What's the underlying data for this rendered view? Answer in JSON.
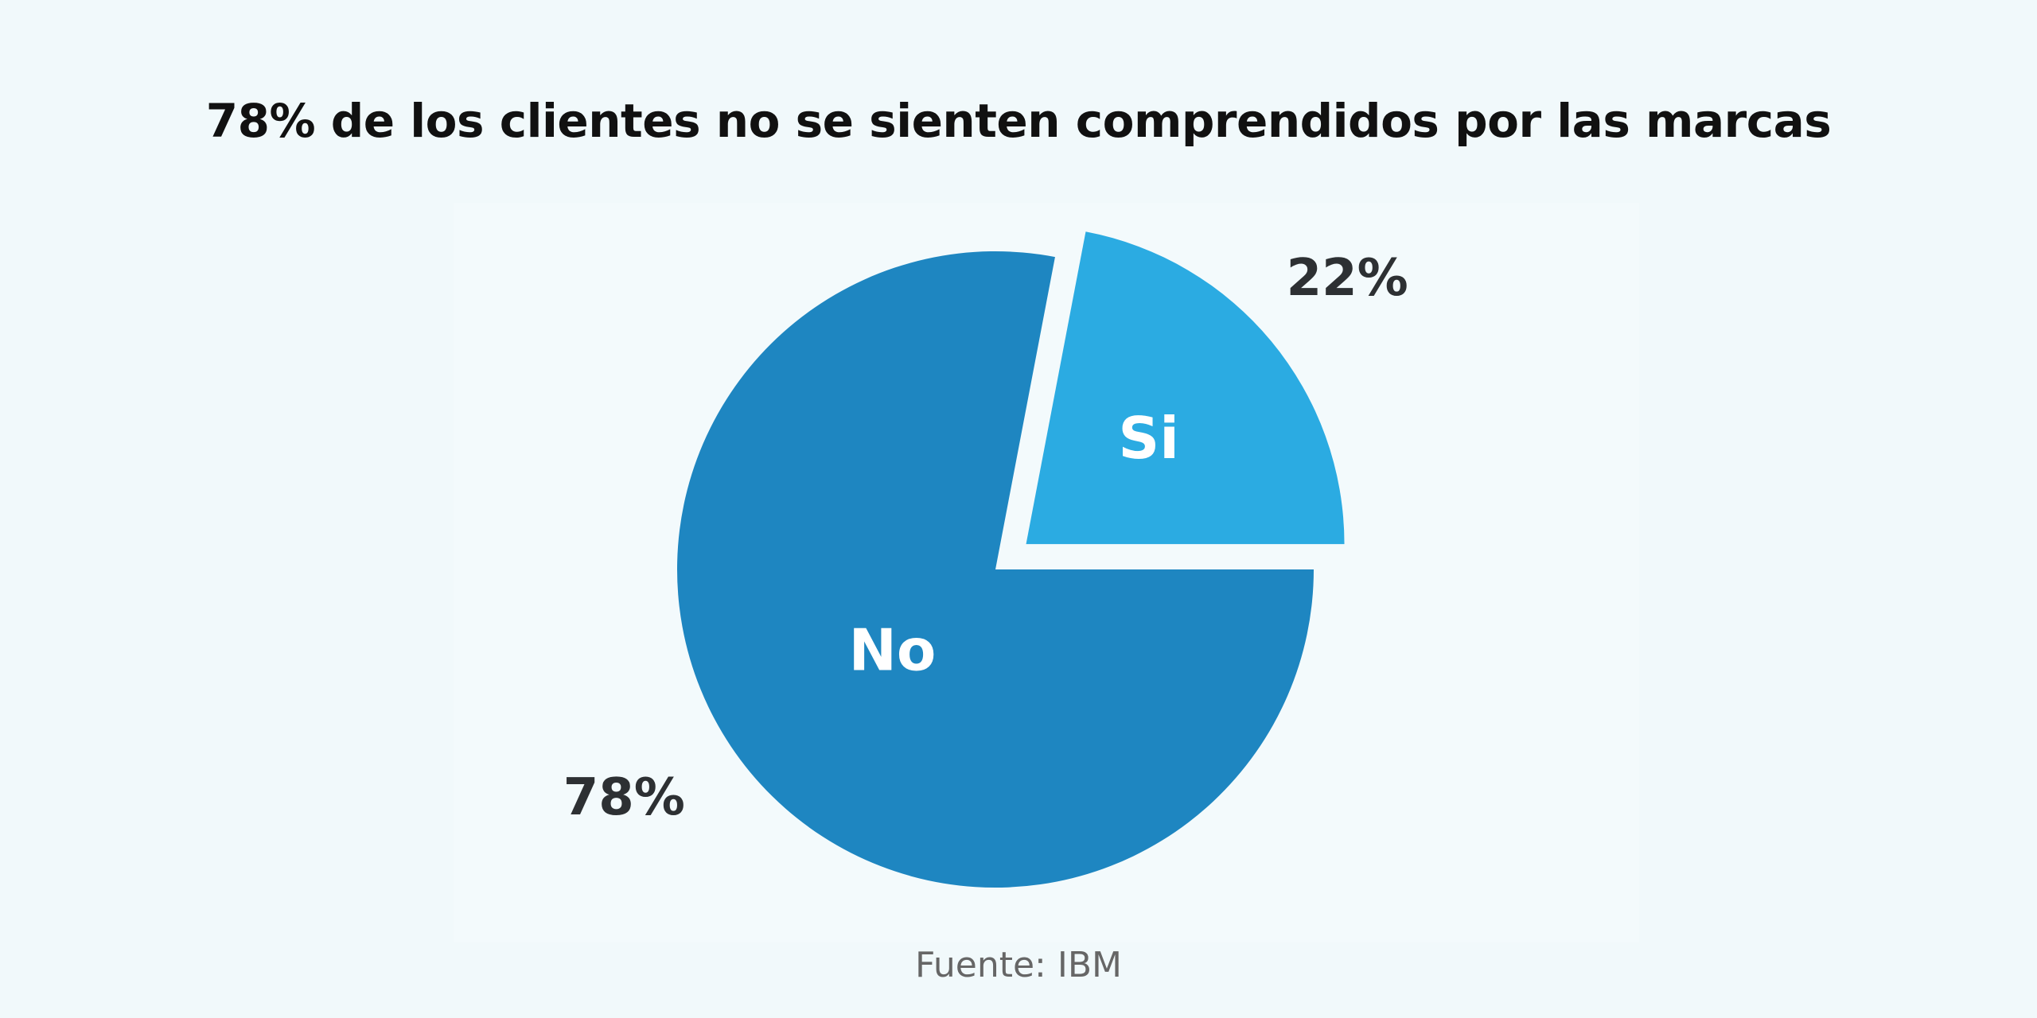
{
  "chart_data": {
    "type": "pie",
    "title": "78% de los clientes no se sienten comprendidos por las marcas",
    "source": "Fuente: IBM",
    "slices": [
      {
        "label": "No",
        "value": 78,
        "value_label": "78%",
        "color": "#1e86c1",
        "exploded": false
      },
      {
        "label": "Si",
        "value": 22,
        "value_label": "22%",
        "color": "#2babe2",
        "exploded": true
      }
    ],
    "legend": "none",
    "grid": false
  }
}
